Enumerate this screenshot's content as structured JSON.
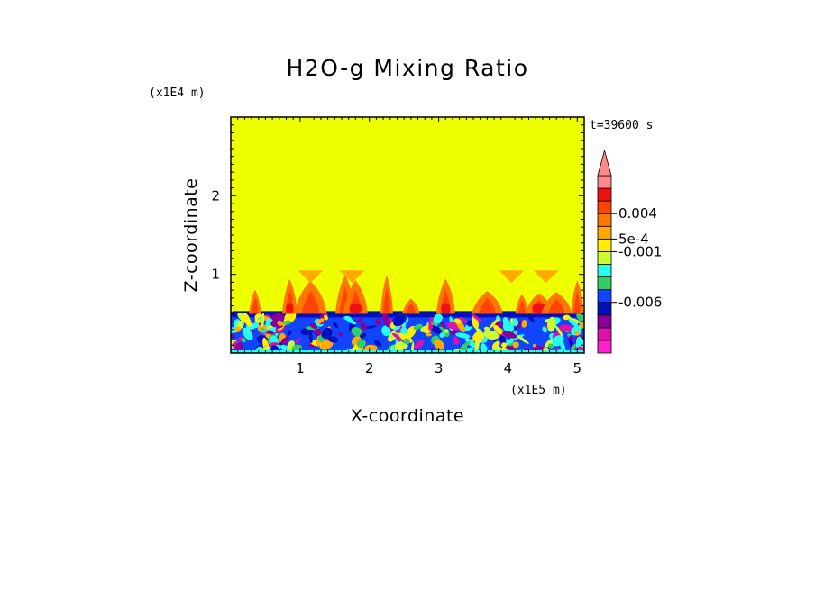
{
  "chart_data": {
    "type": "heatmap",
    "title": "H2O-g Mixing Ratio",
    "xlabel": "X-coordinate",
    "ylabel": "Z-coordinate",
    "x_scale_label": "(x1E5 m)",
    "y_scale_label": "(x1E4 m)",
    "time_label": "t=39600 s",
    "xlim": [
      0,
      5.1
    ],
    "ylim": [
      0,
      3.0
    ],
    "x_ticks": [
      {
        "value": 1,
        "label": "1"
      },
      {
        "value": 2,
        "label": "2"
      },
      {
        "value": 3,
        "label": "3"
      },
      {
        "value": 4,
        "label": "4"
      },
      {
        "value": 5,
        "label": "5"
      }
    ],
    "y_ticks": [
      {
        "value": 1,
        "label": "1"
      },
      {
        "value": 2,
        "label": "2"
      }
    ],
    "colorbar": {
      "colors_bottom_to_top": [
        "#ff22cc",
        "#dd11aa",
        "#880099",
        "#0011bb",
        "#1144ff",
        "#33cc66",
        "#22ffee",
        "#ccff33",
        "#ffee00",
        "#ffaa00",
        "#ff7700",
        "#ff4400",
        "#ee1111",
        "#ff8888"
      ],
      "labels": [
        {
          "level": 4,
          "text": "-0.006"
        },
        {
          "level": 8,
          "text": "-0.001"
        },
        {
          "level": 9,
          "text": "5e-4"
        },
        {
          "level": 11,
          "text": "0.004"
        }
      ],
      "extend": "max"
    },
    "field": {
      "background_color": "#eeff00",
      "boundary_layer_top": 0.5,
      "plume_top": 1.05
    }
  }
}
